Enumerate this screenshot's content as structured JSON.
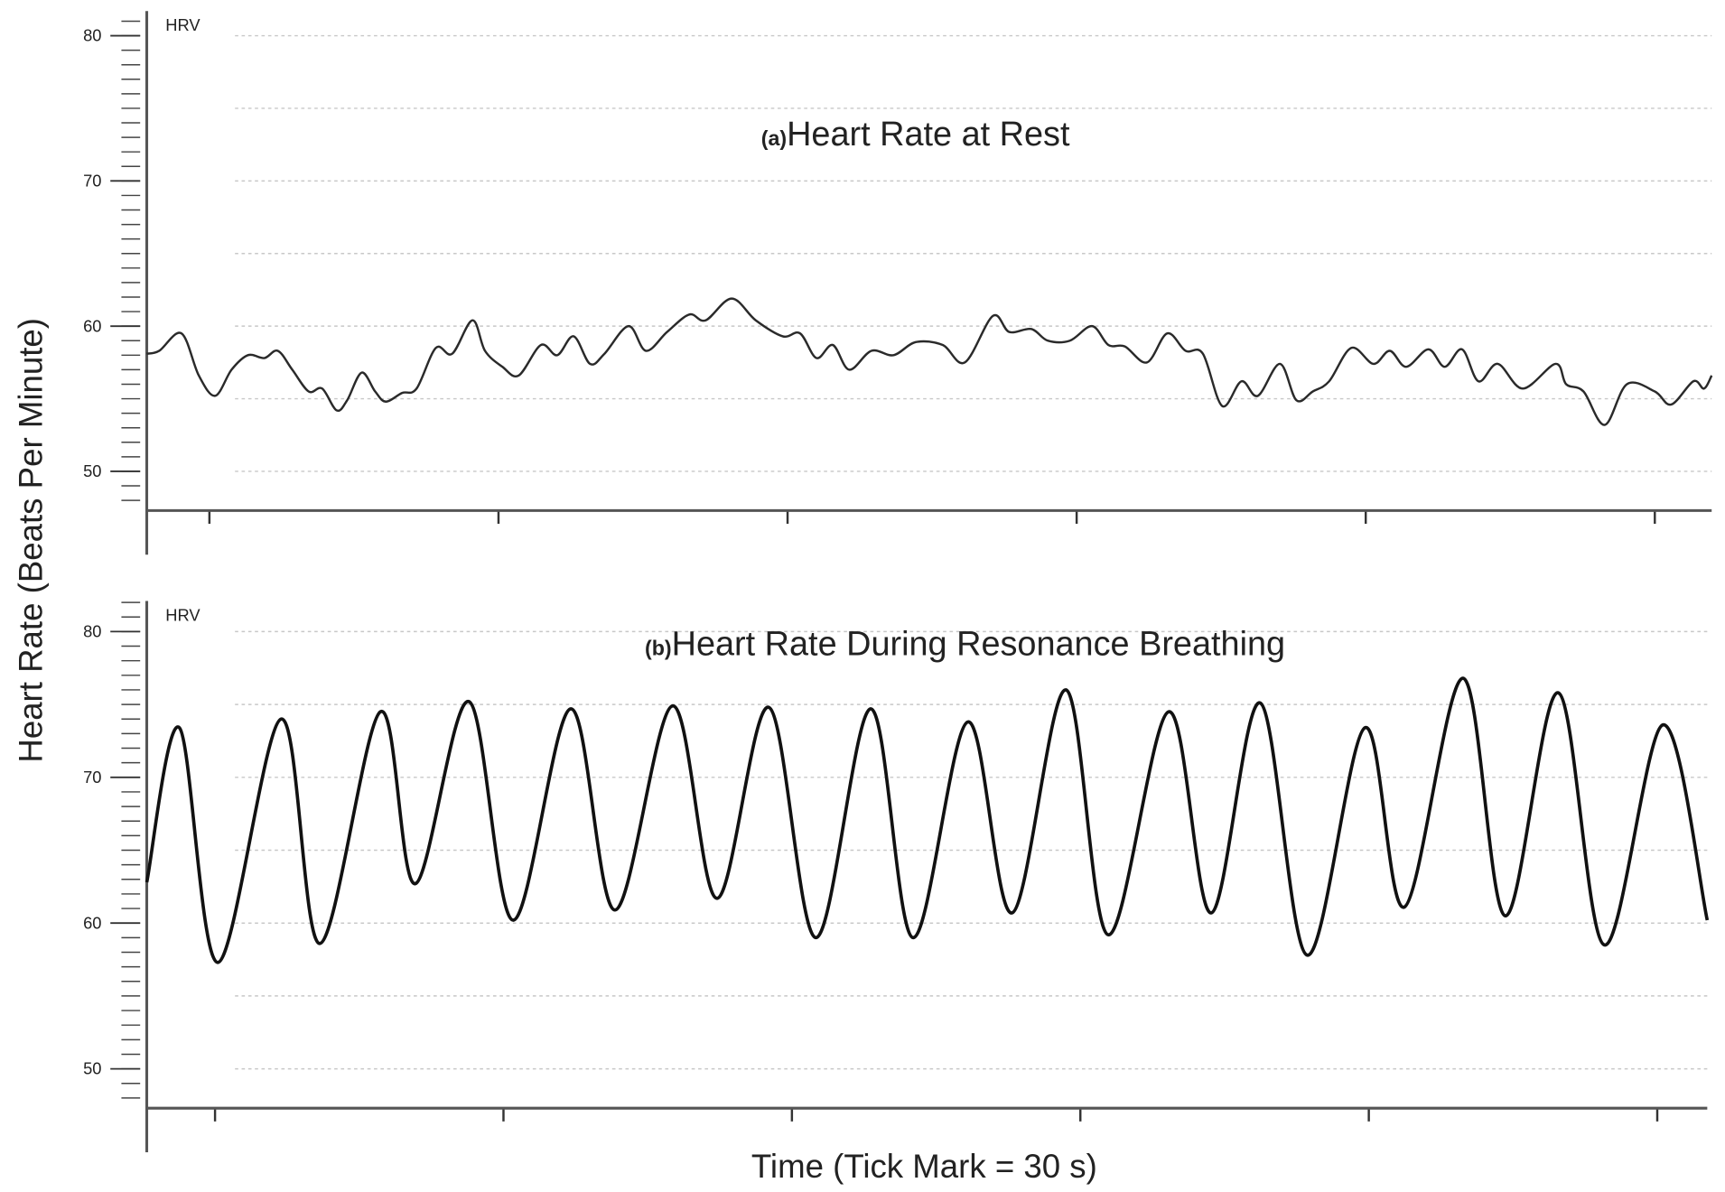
{
  "ylabel": "Heart Rate (Beats Per Minute)",
  "xlabel": "Time (Tick Mark = 30 s)",
  "chart_data": [
    {
      "type": "line",
      "panel_label": "(a)",
      "title": "Heart Rate at Rest",
      "xlim": [
        23.5,
        185.9
      ],
      "xticks": [
        30,
        60,
        90,
        120,
        150,
        180
      ],
      "ylim": [
        47.3,
        81.7
      ],
      "yticks": [
        50,
        60,
        70,
        80
      ],
      "grid_yticks": [
        50,
        55,
        60,
        65,
        70,
        75,
        80
      ],
      "minor_yticks": [
        48,
        49,
        50,
        51,
        52,
        53,
        54,
        55,
        56,
        57,
        58,
        59,
        60,
        61,
        62,
        63,
        64,
        65,
        66,
        67,
        68,
        69,
        70,
        71,
        72,
        73,
        74,
        75,
        76,
        77,
        78,
        79,
        80,
        81
      ],
      "x": [
        23.5,
        24.8,
        27.1,
        28.9,
        30.6,
        32.3,
        34.0,
        35.7,
        37.1,
        38.6,
        40.3,
        41.7,
        43.2,
        44.3,
        45.8,
        47.2,
        48.3,
        50.0,
        51.5,
        53.5,
        55.2,
        57.3,
        58.6,
        60.4,
        62.1,
        64.4,
        66.1,
        67.8,
        69.5,
        71.0,
        73.5,
        75.3,
        77.5,
        79.8,
        81.5,
        84.2,
        86.7,
        89.5,
        91.3,
        93.0,
        94.7,
        96.4,
        98.7,
        101.0,
        103.3,
        106.1,
        108.4,
        111.3,
        113.0,
        115.3,
        117.0,
        119.3,
        121.6,
        123.3,
        125.0,
        127.3,
        129.4,
        131.3,
        133.1,
        135.1,
        137.1,
        138.8,
        141.1,
        142.8,
        144.5,
        146.2,
        148.5,
        150.8,
        152.5,
        154.2,
        156.5,
        158.2,
        160.0,
        161.7,
        163.7,
        166.3,
        169.7,
        170.8,
        172.6,
        174.8,
        177.1,
        180.0,
        181.7,
        184.0,
        185.1,
        185.9
      ],
      "series": [
        {
          "name": "HRV",
          "color": "#2a2a2a",
          "values": [
            58.1,
            58.3,
            59.5,
            56.6,
            55.2,
            57.0,
            58.0,
            57.8,
            58.3,
            57.0,
            55.5,
            55.7,
            54.2,
            54.9,
            56.8,
            55.5,
            54.8,
            55.4,
            55.7,
            58.5,
            58.1,
            60.4,
            58.3,
            57.2,
            56.6,
            58.7,
            58.0,
            59.3,
            57.4,
            58.1,
            60.0,
            58.3,
            59.6,
            60.8,
            60.4,
            61.9,
            60.4,
            59.3,
            59.5,
            57.8,
            58.7,
            57.0,
            58.3,
            58.0,
            58.9,
            58.7,
            57.5,
            60.7,
            59.6,
            59.8,
            59.0,
            59.0,
            60.0,
            58.7,
            58.6,
            57.5,
            59.5,
            58.3,
            58.1,
            54.5,
            56.2,
            55.2,
            57.4,
            54.9,
            55.5,
            56.2,
            58.5,
            57.4,
            58.3,
            57.2,
            58.4,
            57.2,
            58.4,
            56.2,
            57.4,
            55.7,
            57.4,
            56.0,
            55.5,
            53.2,
            56.0,
            55.5,
            54.6,
            56.2,
            55.7,
            56.6
          ]
        }
      ]
    },
    {
      "type": "line",
      "panel_label": "(b)",
      "title": "Heart Rate During Resonance Breathing",
      "xlim": [
        22.9,
        185.2
      ],
      "xticks": [
        30,
        60,
        90,
        120,
        150,
        180
      ],
      "ylim": [
        47.3,
        82.1
      ],
      "yticks": [
        50,
        60,
        70,
        80
      ],
      "grid_yticks": [
        50,
        55,
        60,
        65,
        70,
        75,
        80
      ],
      "minor_yticks": [
        48,
        49,
        50,
        51,
        52,
        53,
        54,
        55,
        56,
        57,
        58,
        59,
        60,
        61,
        62,
        63,
        64,
        65,
        66,
        67,
        68,
        69,
        70,
        71,
        72,
        73,
        74,
        75,
        76,
        77,
        78,
        79,
        80,
        81,
        82
      ],
      "x": [
        22.9,
        26.3,
        30.3,
        36.9,
        40.9,
        47.2,
        50.8,
        56.4,
        61.0,
        67.0,
        71.6,
        77.6,
        82.2,
        87.6,
        92.5,
        98.2,
        102.6,
        108.3,
        112.9,
        118.5,
        122.9,
        129.2,
        133.6,
        138.7,
        143.6,
        149.6,
        153.7,
        159.8,
        164.2,
        169.7,
        174.5,
        180.6,
        185.2
      ],
      "series": [
        {
          "name": "HRV",
          "color": "#111111",
          "values": [
            62.8,
            73.4,
            57.3,
            74.0,
            58.6,
            74.5,
            62.7,
            75.2,
            60.2,
            74.7,
            60.9,
            74.9,
            61.7,
            74.8,
            59.0,
            74.7,
            59.0,
            73.8,
            60.7,
            76.0,
            59.2,
            74.5,
            60.7,
            75.1,
            57.8,
            73.4,
            61.1,
            76.8,
            60.5,
            75.8,
            58.5,
            73.6,
            60.2
          ]
        }
      ]
    }
  ]
}
